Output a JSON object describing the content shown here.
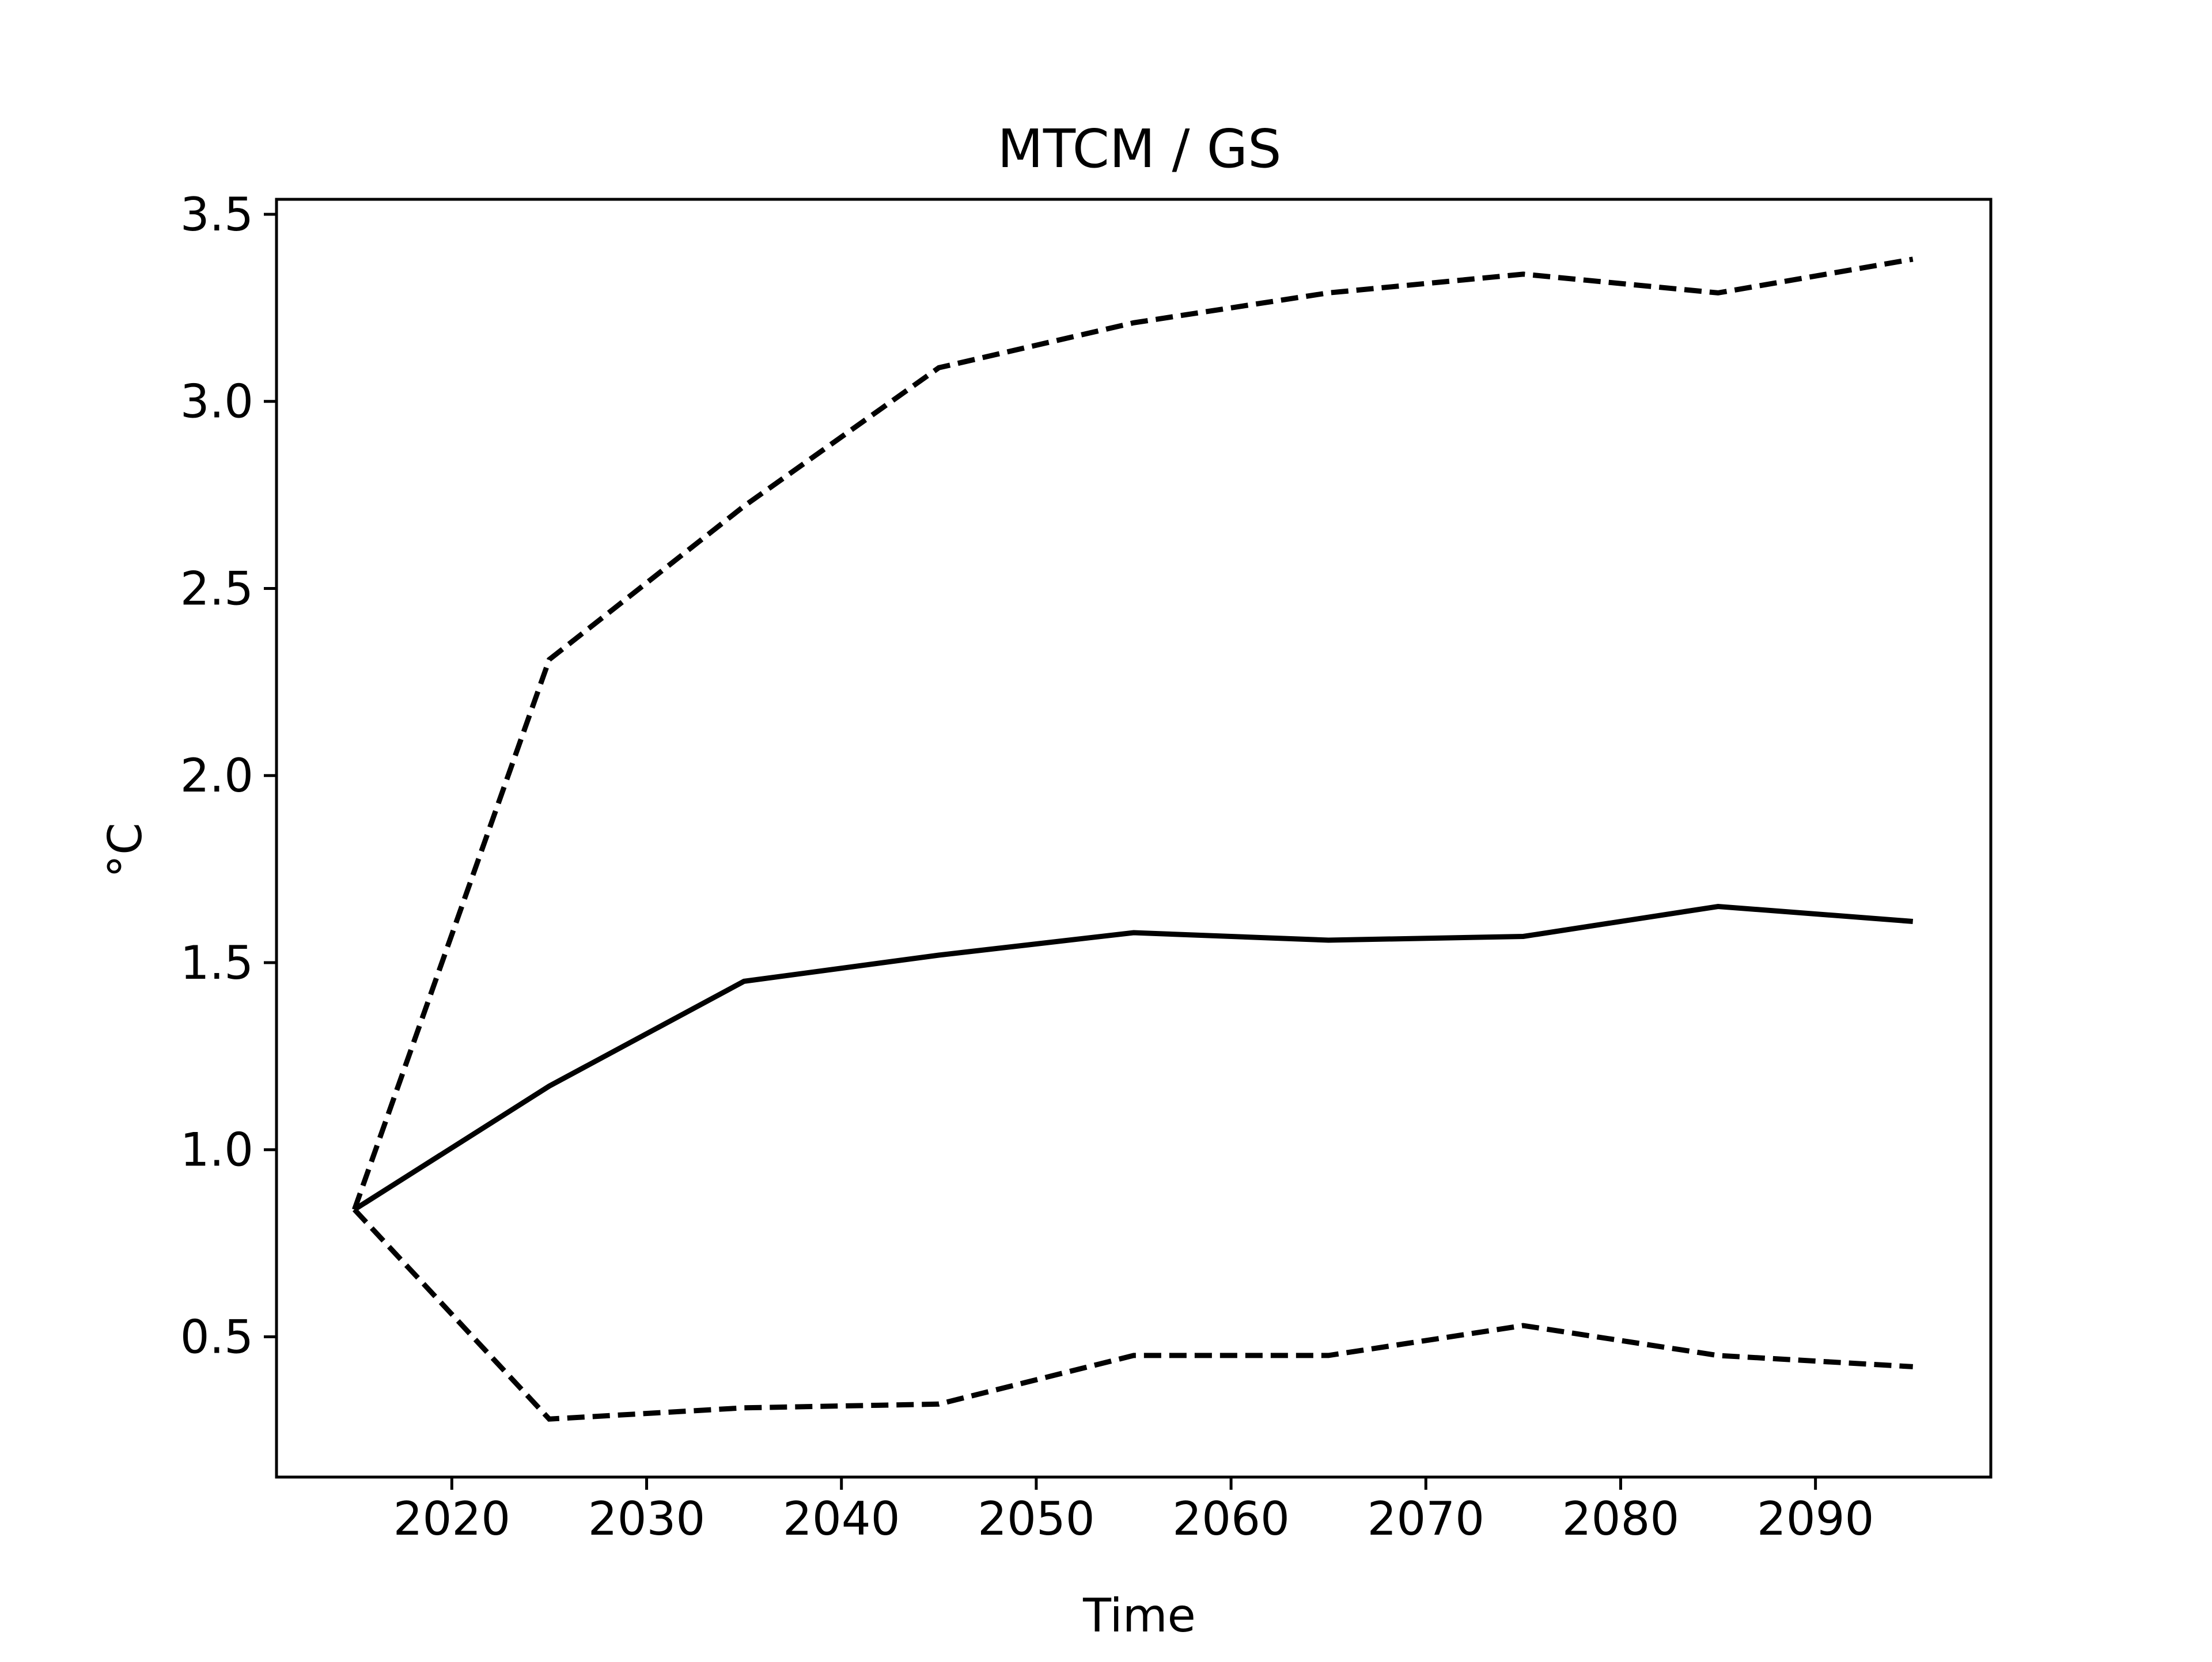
{
  "chart_data": {
    "type": "line",
    "title": "MTCM / GS",
    "xlabel": "Time",
    "ylabel": "°C",
    "xlim": [
      2011,
      2099
    ],
    "ylim": [
      0.125,
      3.54
    ],
    "xticks": [
      2020,
      2030,
      2040,
      2050,
      2060,
      2070,
      2080,
      2090
    ],
    "xtick_labels": [
      "2020",
      "2030",
      "2040",
      "2050",
      "2060",
      "2070",
      "2080",
      "2090"
    ],
    "yticks": [
      0.5,
      1.0,
      1.5,
      2.0,
      2.5,
      3.0,
      3.5
    ],
    "ytick_labels": [
      "0.5",
      "1.0",
      "1.5",
      "2.0",
      "2.5",
      "3.0",
      "3.5"
    ],
    "grid": false,
    "x": [
      2015,
      2025,
      2035,
      2045,
      2055,
      2065,
      2075,
      2085,
      2095
    ],
    "series": [
      {
        "style": "solid",
        "color": "#000000",
        "values": [
          0.84,
          1.17,
          1.45,
          1.52,
          1.58,
          1.56,
          1.57,
          1.65,
          1.61
        ]
      },
      {
        "style": "dashed",
        "color": "#000000",
        "values": [
          0.84,
          2.31,
          2.72,
          3.09,
          3.21,
          3.29,
          3.34,
          3.29,
          3.38
        ]
      },
      {
        "style": "dashed",
        "color": "#000000",
        "values": [
          0.84,
          0.28,
          0.31,
          0.32,
          0.45,
          0.45,
          0.53,
          0.45,
          0.42
        ]
      }
    ]
  }
}
